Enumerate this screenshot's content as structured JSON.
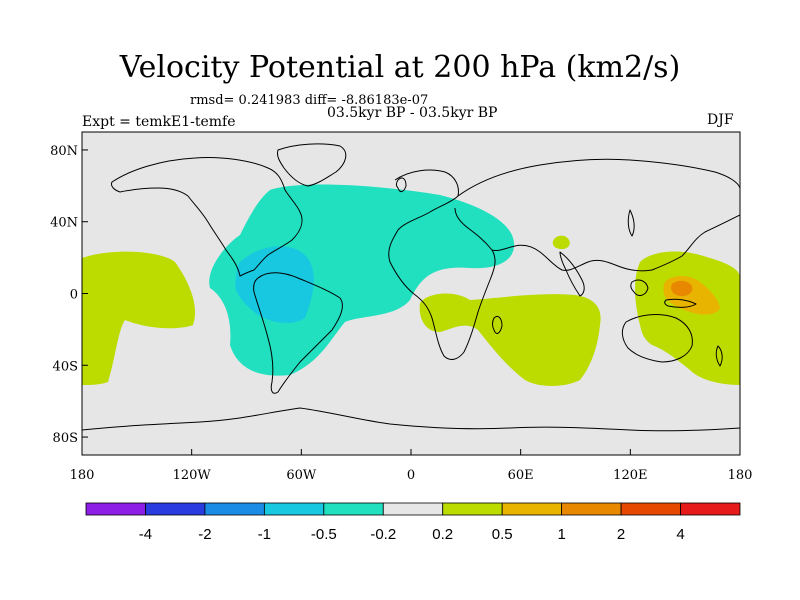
{
  "title": "Velocity Potential at 200 hPa (km2/s)",
  "stats_line": "rmsd= 0.241983 diff= -8.86183e-07",
  "periods_line": "03.5kyr BP - 03.5kyr BP",
  "experiment_label": "Expt = temkE1-temfe",
  "season_label": "DJF",
  "map_data": {
    "projection": "cylindrical-equidistant",
    "lon_range": [
      -180,
      180
    ],
    "lat_range": [
      -90,
      90
    ],
    "x_ticks": [
      "180",
      "120W",
      "60W",
      "0",
      "60E",
      "120E",
      "180"
    ],
    "y_ticks": [
      "80N",
      "40N",
      "0",
      "40S",
      "80S"
    ],
    "ocean_color": "#e6e6e6",
    "fields": [
      {
        "name": "eastern-pacific-positive",
        "level": "0.2 to 0.5",
        "color": "#bcdc00"
      },
      {
        "name": "atlantic-americas-negative",
        "level": "-0.5 to -0.2",
        "color": "#20e0c0"
      },
      {
        "name": "amazon-core-negative",
        "level": "-1 to -0.5",
        "color": "#18c8e0"
      },
      {
        "name": "indian-ocean-positive",
        "level": "0.2 to 0.5",
        "color": "#bcdc00"
      },
      {
        "name": "arabia-small-positive",
        "level": "0.2 to 0.5",
        "color": "#bcdc00"
      },
      {
        "name": "maritime-continent-positive",
        "level": "0.2 to 0.5",
        "color": "#bcdc00"
      },
      {
        "name": "western-pacific-core",
        "level": "0.5 to 1",
        "color": "#e8b400"
      },
      {
        "name": "western-pacific-peak",
        "level": "1 to 2",
        "color": "#e88800"
      }
    ]
  },
  "colorbar": {
    "labels": [
      "-4",
      "-2",
      "-1",
      "-0.5",
      "-0.2",
      "0.2",
      "0.5",
      "1",
      "2",
      "4"
    ],
    "colors": [
      "#8c1ee6",
      "#2a3ce0",
      "#1a8ce6",
      "#18c8e0",
      "#20e0c0",
      "#e6e6e6",
      "#bcdc00",
      "#e8b400",
      "#e88800",
      "#e64800",
      "#e61a1a"
    ]
  }
}
